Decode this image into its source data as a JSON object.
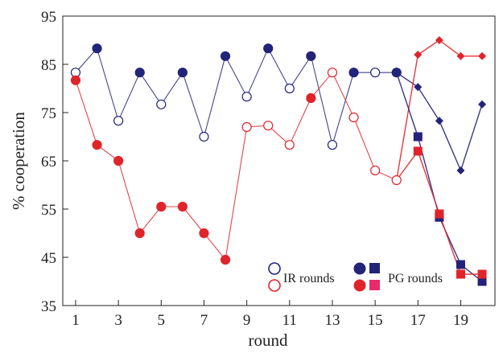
{
  "chart_data": {
    "type": "line",
    "title": "",
    "xlabel": "round",
    "ylabel": "% cooperation",
    "xlim": [
      0.4,
      20.6
    ],
    "ylim": [
      35,
      95
    ],
    "x_ticks": [
      1,
      3,
      5,
      7,
      9,
      11,
      13,
      15,
      17,
      19
    ],
    "y_ticks": [
      35,
      45,
      55,
      65,
      75,
      85,
      95
    ],
    "x_tick_labels": [
      "1",
      "3",
      "5",
      "7",
      "9",
      "11",
      "13",
      "15",
      "17",
      "19"
    ],
    "y_tick_labels": [
      "35",
      "45",
      "55",
      "65",
      "75",
      "85",
      "95"
    ],
    "grid": false,
    "legend": {
      "placement": "bottom-right",
      "ir_label": "IR rounds",
      "pg_label": "PG rounds"
    },
    "colors": {
      "blue": "#23237a",
      "red": "#e0242b",
      "pink": "#ea2b6b"
    },
    "series": [
      {
        "color": "blue",
        "x": [
          1,
          2,
          3,
          4,
          5,
          6,
          7,
          8,
          9,
          10,
          11,
          12,
          13,
          14,
          15,
          16
        ],
        "y": [
          83.3,
          88.3,
          73.3,
          83.3,
          76.7,
          83.3,
          70,
          86.7,
          78.3,
          88.3,
          80,
          86.7,
          68.3,
          83.3,
          83.3,
          83.3
        ],
        "ir_rounds": [
          1,
          3,
          5,
          7,
          9,
          11,
          13,
          15
        ]
      },
      {
        "color": "red",
        "x": [
          1,
          2,
          3,
          4,
          5,
          6,
          7,
          8,
          9,
          10,
          11,
          12,
          13,
          14,
          15,
          16
        ],
        "y": [
          81.7,
          68.3,
          65,
          50,
          55.5,
          55.5,
          50,
          44.5,
          72,
          72.3,
          68.3,
          78,
          83.3,
          74,
          63,
          61
        ],
        "ir_rounds": [
          9,
          10,
          11,
          13,
          14,
          15,
          16
        ]
      },
      {
        "color": "blue",
        "marker": "diamond",
        "x": [
          16,
          17,
          18,
          19,
          20
        ],
        "y": [
          83.3,
          80.3,
          73.3,
          63,
          76.7
        ]
      },
      {
        "color": "red",
        "marker": "diamond",
        "x": [
          16,
          17,
          18,
          19,
          20
        ],
        "y": [
          61,
          87,
          90,
          86.7,
          86.7
        ]
      },
      {
        "color": "blue",
        "marker": "square",
        "x": [
          16,
          17,
          18,
          19,
          20
        ],
        "y": [
          83.3,
          70,
          53.3,
          43.5,
          40
        ]
      },
      {
        "color": "red",
        "marker": "square",
        "x": [
          16,
          17,
          18,
          19,
          20
        ],
        "y": [
          61,
          67,
          54,
          41.5,
          41.5
        ]
      }
    ]
  }
}
